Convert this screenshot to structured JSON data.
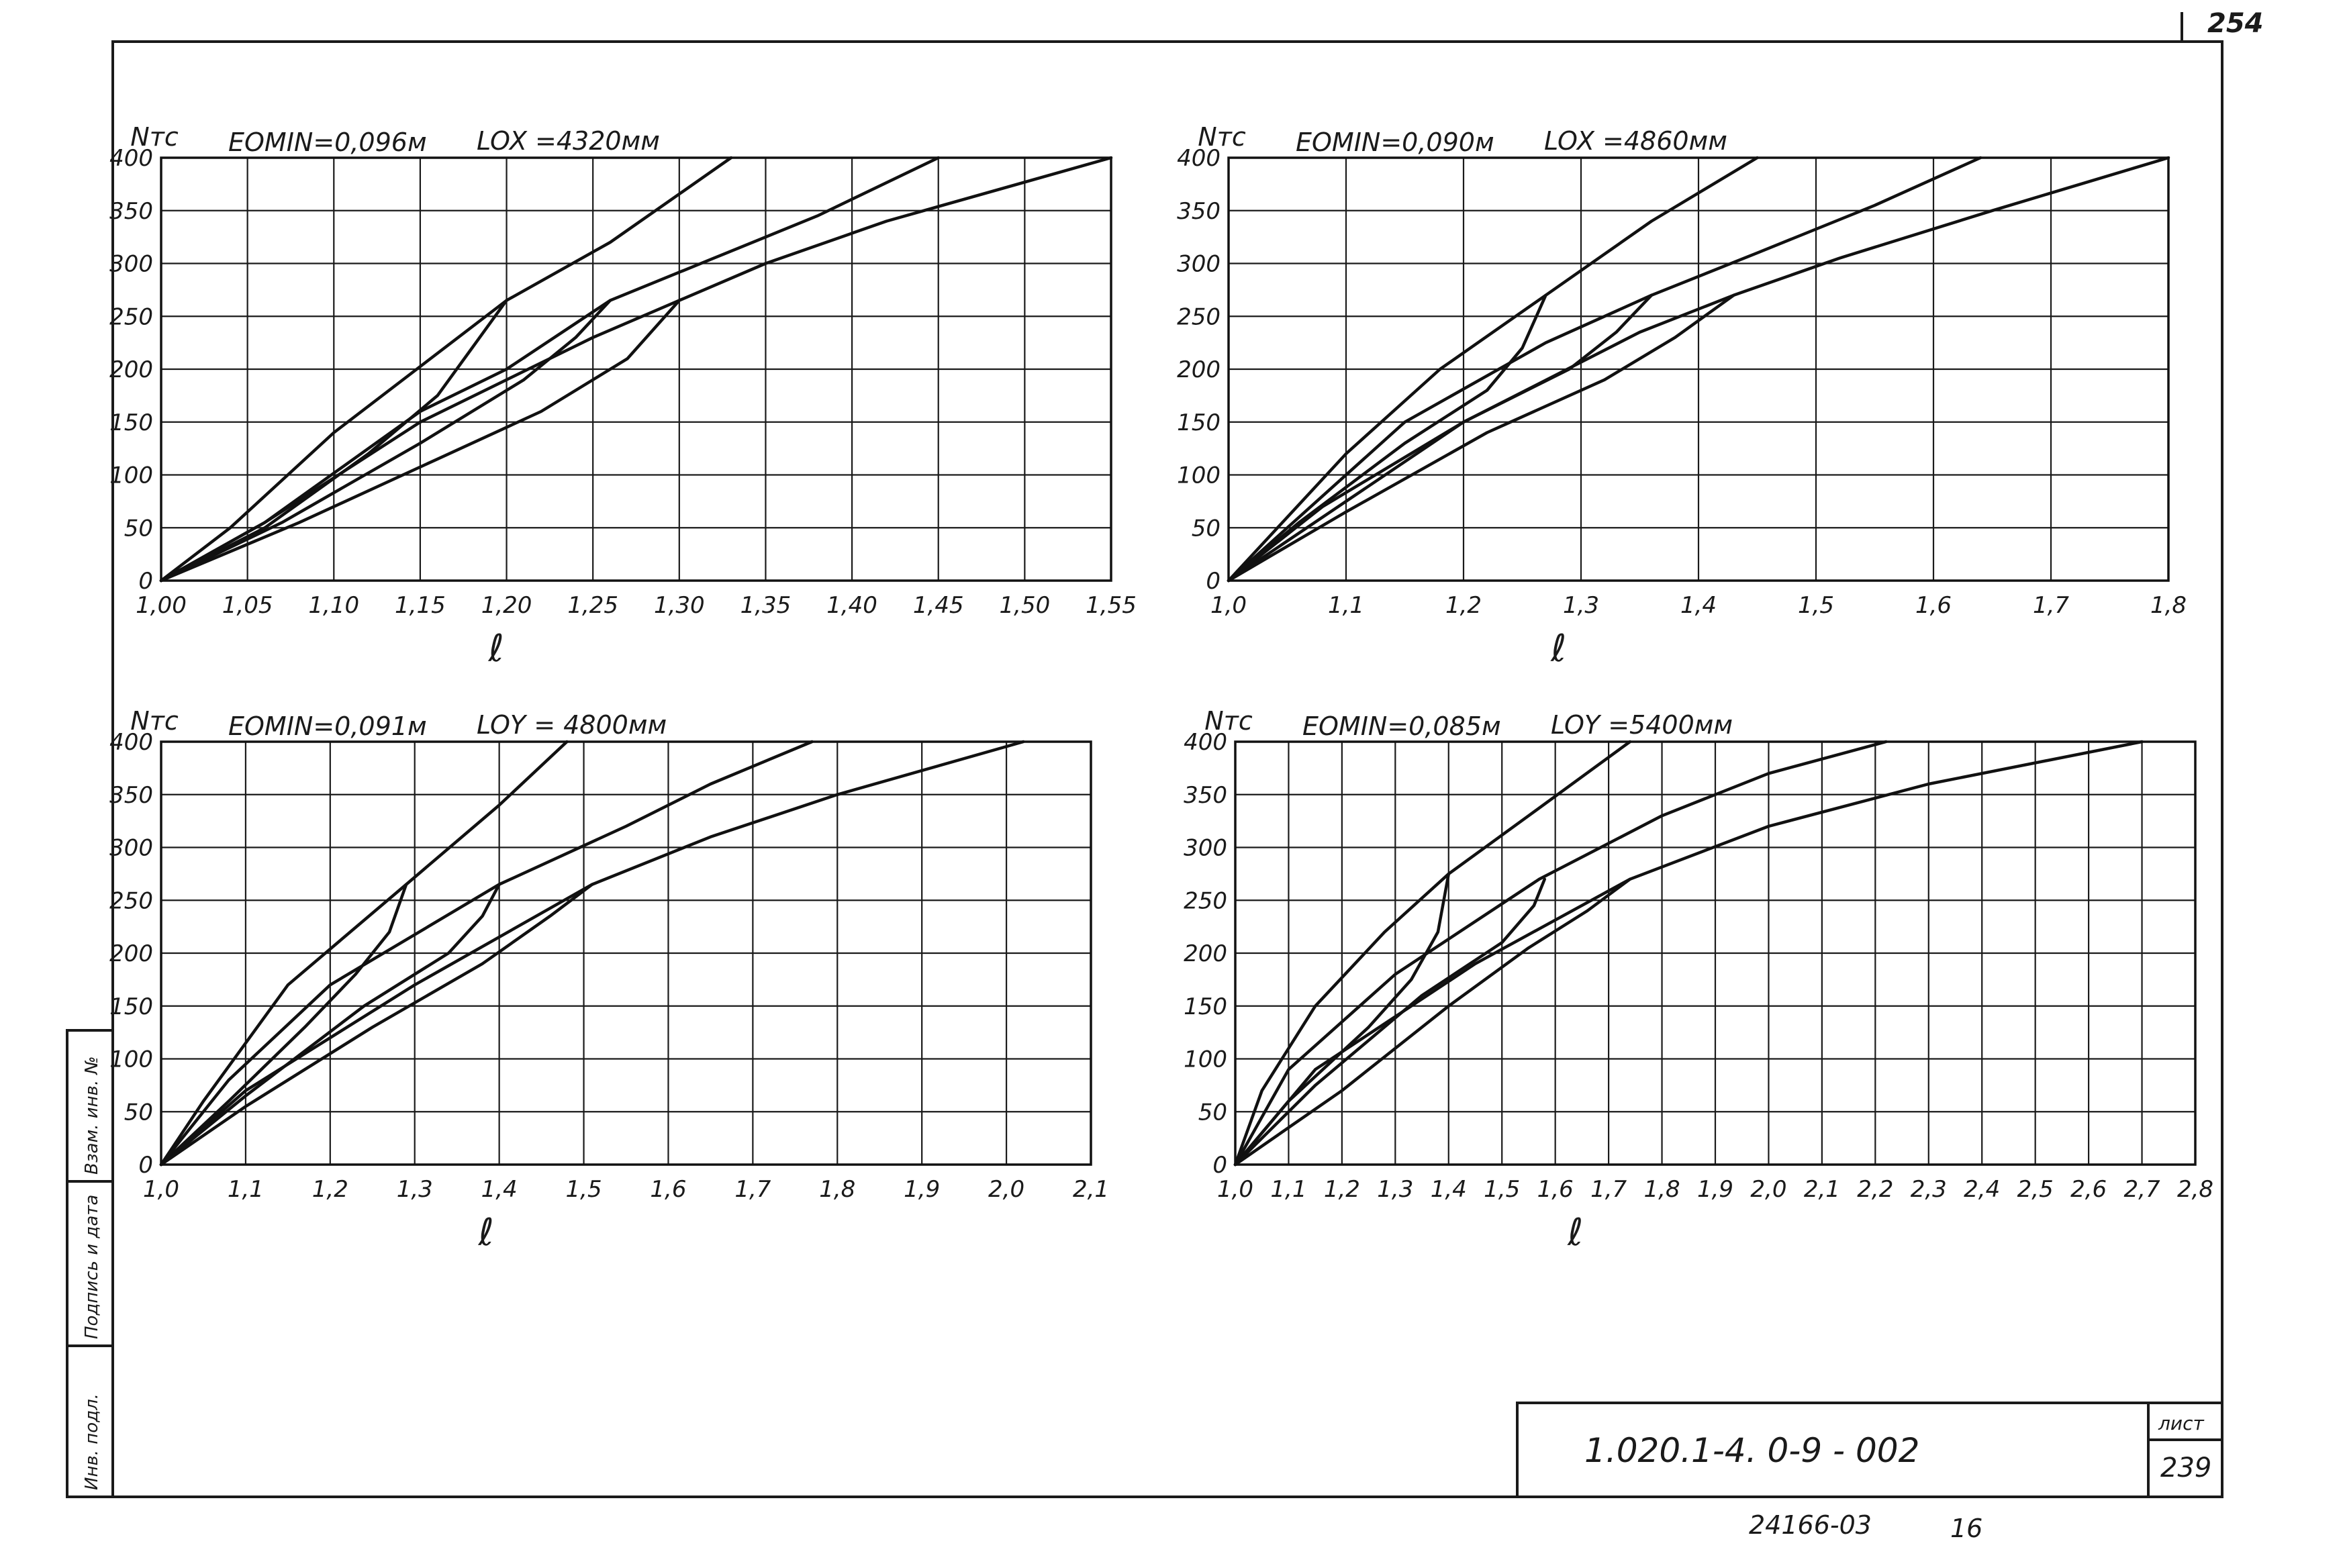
{
  "sheet": {
    "page_number": "254",
    "document_code": "1.020.1-4.   0-9 - 002",
    "list_label": "лист",
    "list_number": "239",
    "order_number": "24166-03",
    "order_suffix": "16"
  },
  "side_strip": {
    "labels": [
      "Инв. подл.",
      "Подпись и дата",
      "Взам. инв. №"
    ]
  },
  "chart_data": [
    {
      "type": "line",
      "ylabel": "Nтс",
      "xlabel": "ℓ",
      "param_e": "EOMIN=0,096м",
      "param_l": "LOX =4320мм",
      "xlim": [
        1.0,
        1.55
      ],
      "ylim": [
        0,
        400
      ],
      "x_ticks": [
        1.0,
        1.05,
        1.1,
        1.15,
        1.2,
        1.25,
        1.3,
        1.35,
        1.4,
        1.45,
        1.5,
        1.55
      ],
      "x_tick_labels": [
        "1,00",
        "1,05",
        "1,10",
        "1,15",
        "1,20",
        "1,25",
        "1,30",
        "1,35",
        "1,40",
        "1,45",
        "1,50",
        "1,55"
      ],
      "y_ticks": [
        0,
        50,
        100,
        150,
        200,
        250,
        300,
        350,
        400
      ],
      "y_tick_labels": [
        "0",
        "50",
        "100",
        "150",
        "200",
        "250",
        "300",
        "350",
        "400"
      ],
      "series": [
        {
          "x": [
            1.0,
            1.04,
            1.1,
            1.2,
            1.26,
            1.33
          ],
          "y": [
            0,
            50,
            140,
            265,
            320,
            400
          ]
        },
        {
          "x": [
            1.0,
            1.06,
            1.15,
            1.2,
            1.26,
            1.32,
            1.38,
            1.45
          ],
          "y": [
            0,
            55,
            160,
            200,
            265,
            305,
            345,
            400
          ]
        },
        {
          "x": [
            1.0,
            1.06,
            1.15,
            1.25,
            1.3,
            1.35,
            1.42,
            1.55
          ],
          "y": [
            0,
            55,
            150,
            230,
            265,
            300,
            340,
            400
          ]
        },
        {
          "x": [
            1.0,
            1.06,
            1.12,
            1.16,
            1.18,
            1.2
          ],
          "y": [
            0,
            50,
            120,
            175,
            220,
            265
          ]
        },
        {
          "x": [
            1.0,
            1.07,
            1.15,
            1.21,
            1.24,
            1.26
          ],
          "y": [
            0,
            55,
            130,
            190,
            230,
            265
          ]
        },
        {
          "x": [
            1.0,
            1.08,
            1.16,
            1.22,
            1.27,
            1.3
          ],
          "y": [
            0,
            55,
            115,
            160,
            210,
            265
          ]
        }
      ]
    },
    {
      "type": "line",
      "ylabel": "Nтс",
      "xlabel": "ℓ",
      "param_e": "EOMIN=0,090м",
      "param_l": "LOX =4860мм",
      "xlim": [
        1.0,
        1.8
      ],
      "ylim": [
        0,
        400
      ],
      "x_ticks": [
        1.0,
        1.1,
        1.2,
        1.3,
        1.4,
        1.5,
        1.6,
        1.7,
        1.8
      ],
      "x_tick_labels": [
        "1,0",
        "1,1",
        "1,2",
        "1,3",
        "1,4",
        "1,5",
        "1,6",
        "1,7",
        "1,8"
      ],
      "y_ticks": [
        0,
        50,
        100,
        150,
        200,
        250,
        300,
        350,
        400
      ],
      "y_tick_labels": [
        "0",
        "50",
        "100",
        "150",
        "200",
        "250",
        "300",
        "350",
        "400"
      ],
      "series": [
        {
          "x": [
            1.0,
            1.05,
            1.1,
            1.18,
            1.27,
            1.36,
            1.45
          ],
          "y": [
            0,
            60,
            120,
            200,
            270,
            340,
            400
          ]
        },
        {
          "x": [
            1.0,
            1.06,
            1.15,
            1.27,
            1.36,
            1.45,
            1.55,
            1.64
          ],
          "y": [
            0,
            60,
            150,
            225,
            270,
            310,
            355,
            400
          ]
        },
        {
          "x": [
            1.0,
            1.08,
            1.2,
            1.35,
            1.43,
            1.52,
            1.65,
            1.8
          ],
          "y": [
            0,
            70,
            150,
            235,
            270,
            305,
            350,
            400
          ]
        },
        {
          "x": [
            1.0,
            1.06,
            1.15,
            1.22,
            1.25,
            1.27
          ],
          "y": [
            0,
            55,
            130,
            180,
            220,
            270
          ]
        },
        {
          "x": [
            1.0,
            1.08,
            1.2,
            1.29,
            1.33,
            1.36
          ],
          "y": [
            0,
            60,
            150,
            200,
            235,
            270
          ]
        },
        {
          "x": [
            1.0,
            1.1,
            1.22,
            1.32,
            1.38,
            1.43
          ],
          "y": [
            0,
            65,
            140,
            190,
            230,
            270
          ]
        }
      ]
    },
    {
      "type": "line",
      "ylabel": "Nтс",
      "xlabel": "ℓ",
      "param_e": "EOMIN=0,091м",
      "param_l": "LOY = 4800мм",
      "xlim": [
        1.0,
        2.1
      ],
      "ylim": [
        0,
        400
      ],
      "x_ticks": [
        1.0,
        1.1,
        1.2,
        1.3,
        1.4,
        1.5,
        1.6,
        1.7,
        1.8,
        1.9,
        2.0,
        2.1
      ],
      "x_tick_labels": [
        "1,0",
        "1,1",
        "1,2",
        "1,3",
        "1,4",
        "1,5",
        "1,6",
        "1,7",
        "1,8",
        "1,9",
        "2,0",
        "2,1"
      ],
      "y_ticks": [
        0,
        50,
        100,
        150,
        200,
        250,
        300,
        350,
        400
      ],
      "y_tick_labels": [
        "0",
        "50",
        "100",
        "150",
        "200",
        "250",
        "300",
        "350",
        "400"
      ],
      "series": [
        {
          "x": [
            1.0,
            1.05,
            1.15,
            1.29,
            1.4,
            1.48
          ],
          "y": [
            0,
            60,
            170,
            265,
            340,
            400
          ]
        },
        {
          "x": [
            1.0,
            1.08,
            1.2,
            1.4,
            1.55,
            1.65,
            1.77
          ],
          "y": [
            0,
            80,
            170,
            265,
            320,
            360,
            400
          ]
        },
        {
          "x": [
            1.0,
            1.1,
            1.3,
            1.51,
            1.65,
            1.8,
            2.02
          ],
          "y": [
            0,
            70,
            170,
            265,
            310,
            350,
            400
          ]
        },
        {
          "x": [
            1.0,
            1.08,
            1.17,
            1.23,
            1.27,
            1.29
          ],
          "y": [
            0,
            60,
            130,
            180,
            220,
            265
          ]
        },
        {
          "x": [
            1.0,
            1.1,
            1.24,
            1.34,
            1.38,
            1.4
          ],
          "y": [
            0,
            65,
            150,
            200,
            235,
            265
          ]
        },
        {
          "x": [
            1.0,
            1.1,
            1.25,
            1.38,
            1.46,
            1.51
          ],
          "y": [
            0,
            55,
            130,
            190,
            235,
            265
          ]
        }
      ]
    },
    {
      "type": "line",
      "ylabel": "Nтс",
      "xlabel": "ℓ",
      "param_e": "EOMIN=0,085м",
      "param_l": "LOY =5400мм",
      "xlim": [
        1.0,
        2.8
      ],
      "ylim": [
        0,
        400
      ],
      "x_ticks": [
        1.0,
        1.1,
        1.2,
        1.3,
        1.4,
        1.5,
        1.6,
        1.7,
        1.8,
        1.9,
        2.0,
        2.1,
        2.2,
        2.3,
        2.4,
        2.5,
        2.6,
        2.7,
        2.8
      ],
      "x_tick_labels": [
        "1,0",
        "1,1",
        "1,2",
        "1,3",
        "1,4",
        "1,5",
        "1,6",
        "1,7",
        "1,8",
        "1,9",
        "2,0",
        "2,1",
        "2,2",
        "2,3",
        "2,4",
        "2,5",
        "2,6",
        "2,7",
        "2,8"
      ],
      "y_ticks": [
        0,
        50,
        100,
        150,
        200,
        250,
        300,
        350,
        400
      ],
      "y_tick_labels": [
        "0",
        "50",
        "100",
        "150",
        "200",
        "250",
        "300",
        "350",
        "400"
      ],
      "series": [
        {
          "x": [
            1.0,
            1.05,
            1.15,
            1.28,
            1.4,
            1.55,
            1.74
          ],
          "y": [
            0,
            70,
            150,
            220,
            275,
            330,
            400
          ]
        },
        {
          "x": [
            1.0,
            1.1,
            1.3,
            1.57,
            1.8,
            2.0,
            2.22
          ],
          "y": [
            0,
            90,
            180,
            270,
            330,
            370,
            400
          ]
        },
        {
          "x": [
            1.0,
            1.15,
            1.45,
            1.74,
            2.0,
            2.3,
            2.7
          ],
          "y": [
            0,
            90,
            190,
            270,
            320,
            360,
            400
          ]
        },
        {
          "x": [
            1.0,
            1.1,
            1.25,
            1.33,
            1.38,
            1.4
          ],
          "y": [
            0,
            60,
            130,
            175,
            220,
            275
          ]
        },
        {
          "x": [
            1.0,
            1.15,
            1.35,
            1.5,
            1.56,
            1.58
          ],
          "y": [
            0,
            75,
            160,
            210,
            245,
            270
          ]
        },
        {
          "x": [
            1.0,
            1.2,
            1.4,
            1.55,
            1.66,
            1.74
          ],
          "y": [
            0,
            70,
            150,
            205,
            240,
            270
          ]
        }
      ]
    }
  ]
}
